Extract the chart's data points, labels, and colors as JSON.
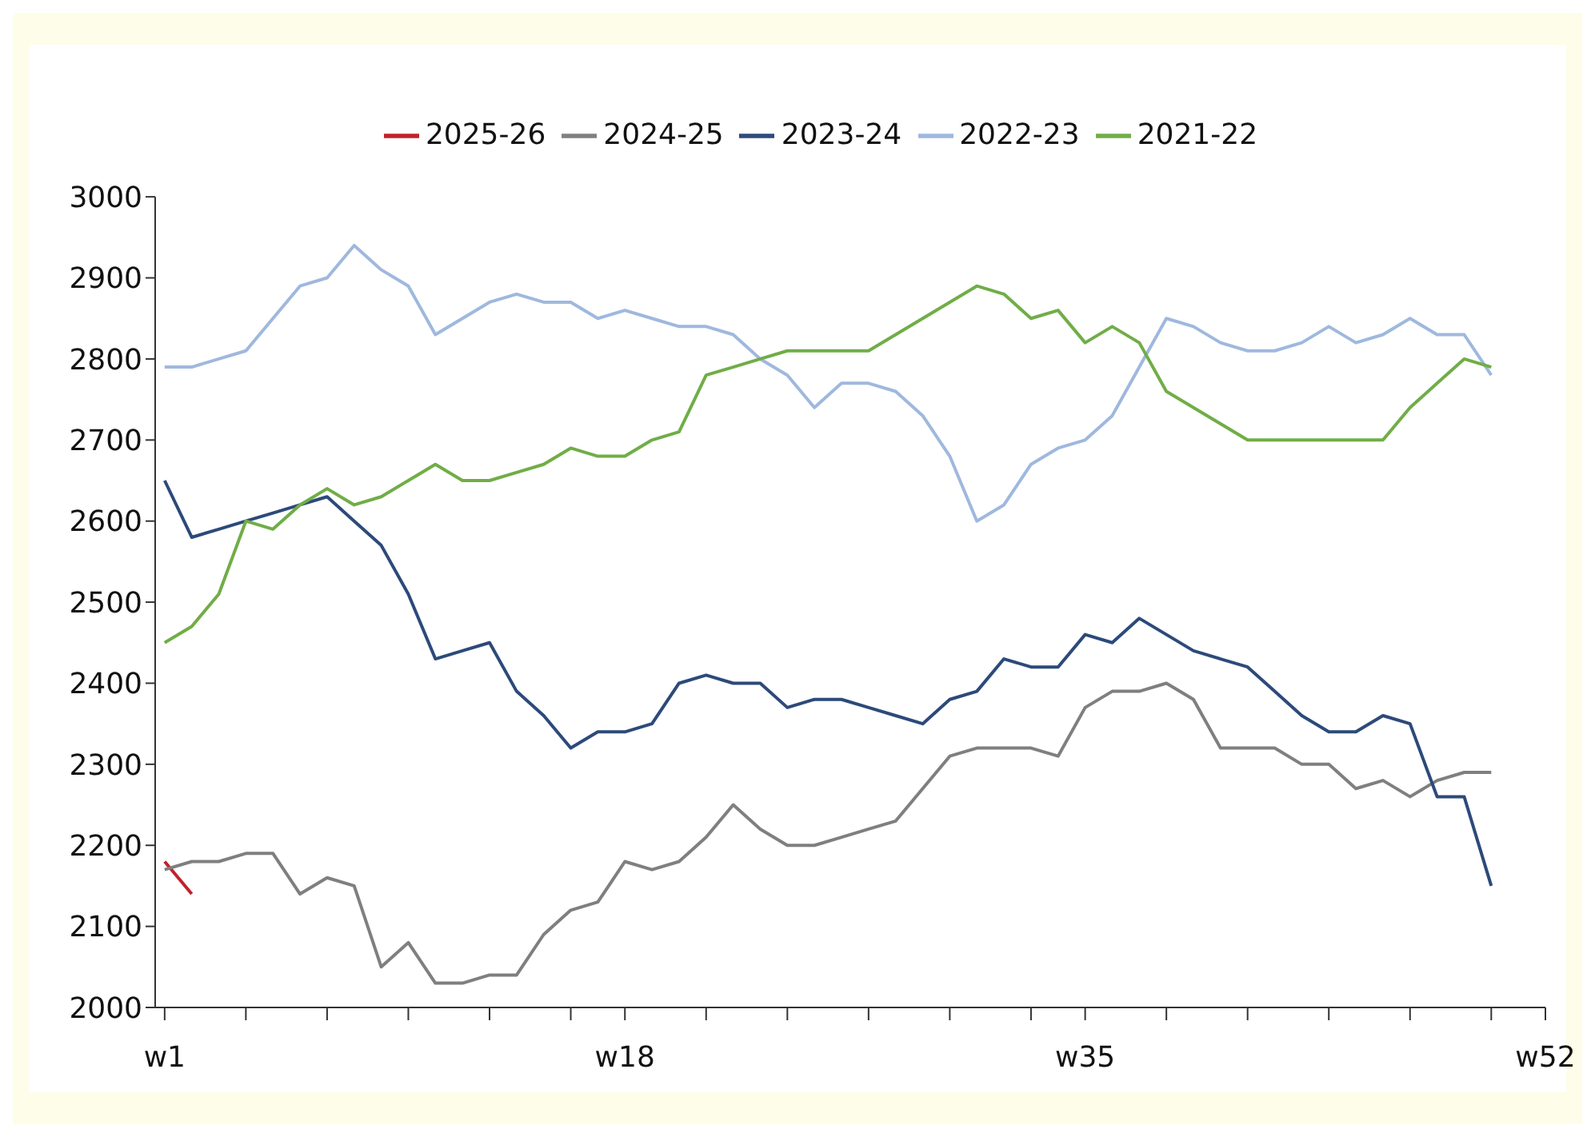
{
  "chart_data": {
    "type": "line",
    "categories": [
      "w1",
      null,
      null,
      null,
      null,
      null,
      null,
      null,
      null,
      null,
      null,
      null,
      null,
      null,
      null,
      null,
      null,
      "w18",
      null,
      null,
      null,
      null,
      null,
      null,
      null,
      null,
      null,
      null,
      null,
      null,
      null,
      null,
      null,
      null,
      "w35",
      null,
      null,
      null,
      null,
      null,
      null,
      null,
      null,
      null,
      null,
      null,
      null,
      null,
      null,
      null,
      null,
      "w52"
    ],
    "ylim": [
      2000,
      3000
    ],
    "yticks": [
      2000,
      2100,
      2200,
      2300,
      2400,
      2500,
      2600,
      2700,
      2800,
      2900,
      3000
    ],
    "legend": "top",
    "marker": "none",
    "line_style": "solid",
    "grid": false,
    "series": [
      {
        "name": "2025-26",
        "color": "#c0222b",
        "values": [
          2180,
          2140,
          null,
          null,
          null,
          null,
          null,
          null,
          null,
          null,
          null,
          null,
          null,
          null,
          null,
          null,
          null,
          null,
          null,
          null,
          null,
          null,
          null,
          null,
          null,
          null,
          null,
          null,
          null,
          null,
          null,
          null,
          null,
          null,
          null,
          null,
          null,
          null,
          null,
          null,
          null,
          null,
          null,
          null,
          null,
          null,
          null,
          null,
          null,
          null,
          null,
          null
        ]
      },
      {
        "name": "2024-25",
        "color": "#7f7f7f",
        "values": [
          2170,
          2180,
          2180,
          2190,
          2190,
          2140,
          2160,
          2150,
          2050,
          2080,
          2030,
          2030,
          2040,
          2040,
          2090,
          2120,
          2130,
          2180,
          2170,
          2180,
          2210,
          2250,
          2220,
          2200,
          2200,
          2210,
          2220,
          2230,
          2270,
          2310,
          2320,
          2320,
          2320,
          2310,
          2370,
          2390,
          2390,
          2400,
          2380,
          2320,
          2320,
          2320,
          2300,
          2300,
          2270,
          2280,
          2260,
          2280,
          2290,
          2290,
          null,
          null
        ]
      },
      {
        "name": "2023-24",
        "color": "#2c4a7a",
        "values": [
          2650,
          2580,
          2590,
          2600,
          2610,
          2620,
          2630,
          2600,
          2570,
          2510,
          2430,
          2440,
          2450,
          2390,
          2360,
          2320,
          2340,
          2340,
          2350,
          2400,
          2410,
          2400,
          2400,
          2370,
          2380,
          2380,
          2370,
          2360,
          2350,
          2380,
          2390,
          2430,
          2420,
          2420,
          2460,
          2450,
          2480,
          2460,
          2440,
          2430,
          2420,
          2390,
          2360,
          2340,
          2340,
          2360,
          2350,
          2260,
          2260,
          2150,
          null,
          null
        ]
      },
      {
        "name": "2022-23",
        "color": "#9fb8de",
        "values": [
          2790,
          2790,
          2800,
          2810,
          2850,
          2890,
          2900,
          2940,
          2910,
          2890,
          2830,
          2850,
          2870,
          2880,
          2870,
          2870,
          2850,
          2860,
          2850,
          2840,
          2840,
          2830,
          2800,
          2780,
          2740,
          2770,
          2770,
          2760,
          2730,
          2680,
          2600,
          2620,
          2670,
          2690,
          2700,
          2730,
          2790,
          2850,
          2840,
          2820,
          2810,
          2810,
          2820,
          2840,
          2820,
          2830,
          2850,
          2830,
          2830,
          2780,
          null,
          null
        ]
      },
      {
        "name": "2021-22",
        "color": "#70ad47",
        "values": [
          2450,
          2470,
          2510,
          2600,
          2590,
          2620,
          2640,
          2620,
          2630,
          2650,
          2670,
          2650,
          2650,
          2660,
          2670,
          2690,
          2680,
          2680,
          2700,
          2710,
          2780,
          2790,
          2800,
          2810,
          2810,
          2810,
          2810,
          2830,
          2850,
          2870,
          2890,
          2880,
          2850,
          2860,
          2820,
          2840,
          2820,
          2760,
          2740,
          2720,
          2700,
          2700,
          2700,
          2700,
          2700,
          2700,
          2740,
          2770,
          2800,
          2790,
          null,
          null
        ]
      }
    ]
  }
}
